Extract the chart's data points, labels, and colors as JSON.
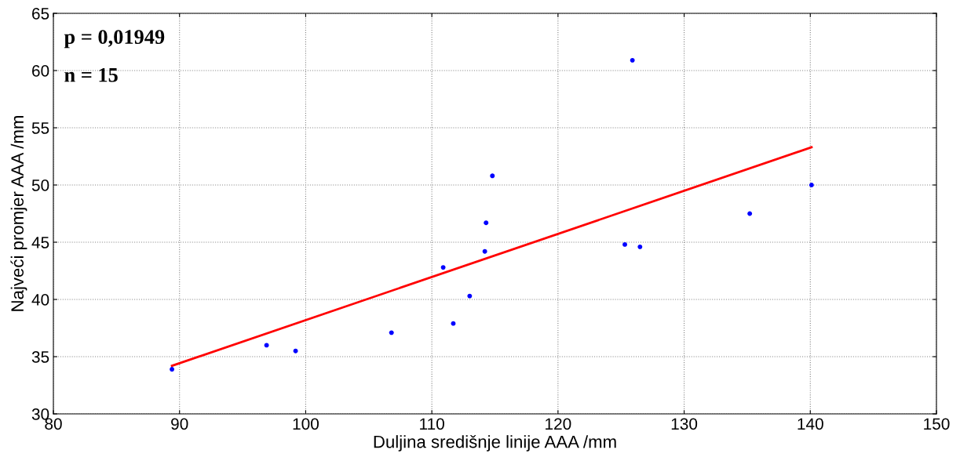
{
  "chart_data": {
    "type": "scatter",
    "xlabel": "Duljina središnje linije AAA /mm",
    "ylabel": "Najveći promjer AAA /mm",
    "annotations": [
      "p = 0,01949",
      "n = 15"
    ],
    "series": [
      {
        "color": "#0000ff",
        "marker": "circle",
        "x": [
          89.4,
          96.9,
          99.2,
          106.8,
          110.9,
          111.7,
          113.0,
          114.2,
          114.3,
          114.8,
          125.9,
          125.3,
          126.5,
          135.2,
          140.1
        ],
        "values": [
          33.9,
          36.0,
          35.5,
          37.1,
          42.8,
          37.9,
          40.3,
          44.2,
          46.7,
          50.8,
          60.9,
          44.8,
          44.6,
          47.5,
          50.0
        ]
      },
      {
        "type": "line",
        "color": "#ff0000",
        "x": [
          89.4,
          140.1
        ],
        "values": [
          34.2,
          53.3
        ]
      }
    ],
    "xlim": [
      80,
      150
    ],
    "xticks": [
      80,
      90,
      100,
      110,
      120,
      130,
      140,
      150
    ],
    "ylim": [
      30,
      65
    ],
    "yticks": [
      30,
      35,
      40,
      45,
      50,
      55,
      60,
      65
    ],
    "grid": true
  }
}
